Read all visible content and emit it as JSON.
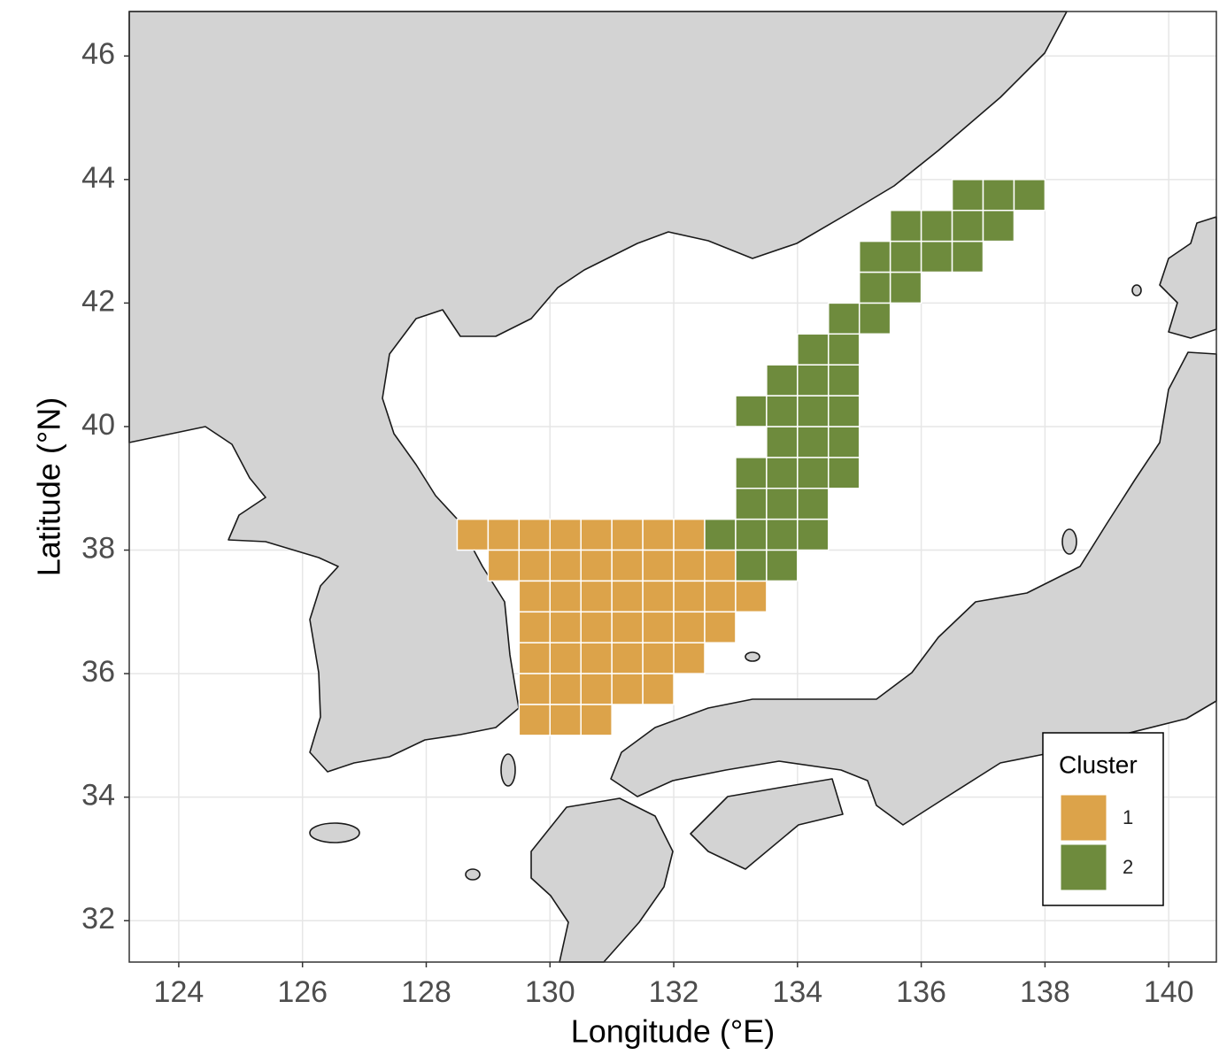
{
  "chart_data": {
    "type": "tile-map",
    "x_label": "Longitude (°E)",
    "y_label": "Latitude (°N)",
    "xlim": [
      123.2,
      140.77
    ],
    "ylim": [
      31.33,
      46.72
    ],
    "xticks": [
      124,
      126,
      128,
      130,
      132,
      134,
      136,
      138,
      140
    ],
    "yticks": [
      32,
      34,
      36,
      38,
      40,
      42,
      44,
      46
    ],
    "grid": true,
    "legend_title": "Cluster",
    "legend_position": "bottom-right",
    "series": [
      {
        "name": "1",
        "color": "#dca34a",
        "x": [
          128.75,
          129.25,
          129.75,
          130.25,
          130.75,
          131.25,
          131.75,
          132.25,
          129.25,
          129.75,
          130.25,
          130.75,
          131.25,
          131.75,
          132.25,
          132.75,
          129.75,
          130.25,
          130.75,
          131.25,
          131.75,
          132.25,
          132.75,
          133.25,
          129.75,
          130.25,
          130.75,
          131.25,
          131.75,
          132.25,
          132.75,
          129.75,
          130.25,
          130.75,
          131.25,
          131.75,
          132.25,
          129.75,
          130.25,
          130.75,
          131.25,
          131.75,
          129.75,
          130.25,
          130.75
        ],
        "y": [
          38.25,
          38.25,
          38.25,
          38.25,
          38.25,
          38.25,
          38.25,
          38.25,
          37.75,
          37.75,
          37.75,
          37.75,
          37.75,
          37.75,
          37.75,
          37.75,
          37.25,
          37.25,
          37.25,
          37.25,
          37.25,
          37.25,
          37.25,
          37.25,
          36.75,
          36.75,
          36.75,
          36.75,
          36.75,
          36.75,
          36.75,
          36.25,
          36.25,
          36.25,
          36.25,
          36.25,
          36.25,
          35.75,
          35.75,
          35.75,
          35.75,
          35.75,
          35.25,
          35.25,
          35.25
        ]
      },
      {
        "name": "2",
        "color": "#6e8b3d",
        "x": [
          132.75,
          133.25,
          133.75,
          134.25,
          133.25,
          133.75,
          133.25,
          133.75,
          134.25,
          133.25,
          133.75,
          134.25,
          134.75,
          133.75,
          134.25,
          134.75,
          133.25,
          133.75,
          134.25,
          134.75,
          133.75,
          134.25,
          134.75,
          134.25,
          134.75,
          134.75,
          135.25,
          135.25,
          135.75,
          135.25,
          135.75,
          136.25,
          136.75,
          135.75,
          136.25,
          136.75,
          137.25,
          136.75,
          137.25,
          137.75
        ],
        "y": [
          38.25,
          38.25,
          38.25,
          38.25,
          37.75,
          37.75,
          38.75,
          38.75,
          38.75,
          39.25,
          39.25,
          39.25,
          39.25,
          39.75,
          39.75,
          39.75,
          40.25,
          40.25,
          40.25,
          40.25,
          40.75,
          40.75,
          40.75,
          41.25,
          41.25,
          41.75,
          41.75,
          42.25,
          42.25,
          42.75,
          42.75,
          42.75,
          42.75,
          43.25,
          43.25,
          43.25,
          43.25,
          43.75,
          43.75,
          43.75
        ]
      }
    ]
  }
}
